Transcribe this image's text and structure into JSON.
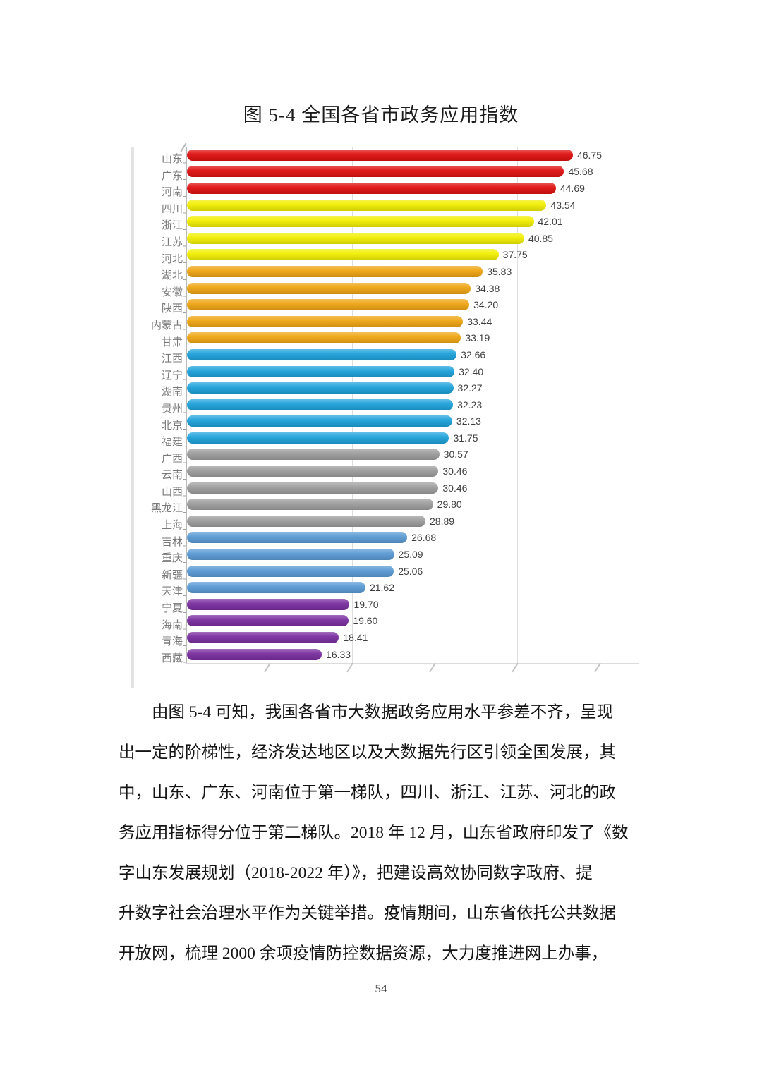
{
  "figure": {
    "title": "图 5-4 全国各省市政务应用指数"
  },
  "chart_data": {
    "type": "bar",
    "orientation": "horizontal",
    "title": "图 5-4 全国各省市政务应用指数",
    "xlim": [
      0,
      50
    ],
    "gridline_interval": 10,
    "grid": true,
    "legend": "none",
    "categories": [
      "山东",
      "广东",
      "河南",
      "四川",
      "浙江",
      "江苏",
      "河北",
      "湖北",
      "安徽",
      "陕西",
      "内蒙古",
      "甘肃",
      "江西",
      "辽宁",
      "湖南",
      "贵州",
      "北京",
      "福建",
      "广西",
      "云南",
      "山西",
      "黑龙江",
      "上海",
      "吉林",
      "重庆",
      "新疆",
      "天津",
      "宁夏",
      "海南",
      "青海",
      "西藏"
    ],
    "values": [
      46.75,
      45.68,
      44.69,
      43.54,
      42.01,
      40.85,
      37.75,
      35.83,
      34.38,
      34.2,
      33.44,
      33.19,
      32.66,
      32.4,
      32.27,
      32.23,
      32.13,
      31.75,
      30.57,
      30.46,
      30.46,
      29.8,
      28.89,
      26.68,
      25.09,
      25.06,
      21.62,
      19.7,
      19.6,
      18.41,
      16.33
    ],
    "value_labels": [
      "46.75",
      "45.68",
      "44.69",
      "43.54",
      "42.01",
      "40.85",
      "37.75",
      "35.83",
      "34.38",
      "34.20",
      "33.44",
      "33.19",
      "32.66",
      "32.40",
      "32.27",
      "32.23",
      "32.13",
      "31.75",
      "30.57",
      "30.46",
      "30.46",
      "29.80",
      "28.89",
      "26.68",
      "25.09",
      "25.06",
      "21.62",
      "19.70",
      "19.60",
      "18.41",
      "16.33"
    ],
    "bar_tiers": [
      "red",
      "red",
      "red",
      "yellow",
      "yellow",
      "yellow",
      "yellow",
      "orange",
      "orange",
      "orange",
      "orange",
      "orange",
      "cyan",
      "cyan",
      "cyan",
      "cyan",
      "cyan",
      "cyan",
      "gray",
      "gray",
      "gray",
      "gray",
      "gray",
      "blue",
      "blue",
      "blue",
      "blue",
      "purple",
      "purple",
      "purple",
      "purple"
    ],
    "tier_colors": {
      "red": "#e01111",
      "yellow": "#f2ef04",
      "orange": "#efa513",
      "cyan": "#1ea2db",
      "gray": "#9e9e9e",
      "blue": "#5b9bd5",
      "purple": "#7a2fa0"
    }
  },
  "body": {
    "lines": [
      "由图 5-4 可知，我国各省市大数据政务应用水平参差不齐，呈现",
      "出一定的阶梯性，经济发达地区以及大数据先行区引领全国发展，其",
      "中，山东、广东、河南位于第一梯队，四川、浙江、江苏、河北的政",
      "务应用指标得分位于第二梯队。2018 年 12 月，山东省政府印发了《数",
      "字山东发展规划（2018-2022 年）》，把建设高效协同数字政府、提",
      "升数字社会治理水平作为关键举措。疫情期间，山东省依托公共数据",
      "开放网，梳理 2000 余项疫情防控数据资源，大力度推进网上办事，"
    ]
  },
  "page": {
    "number": "54"
  }
}
